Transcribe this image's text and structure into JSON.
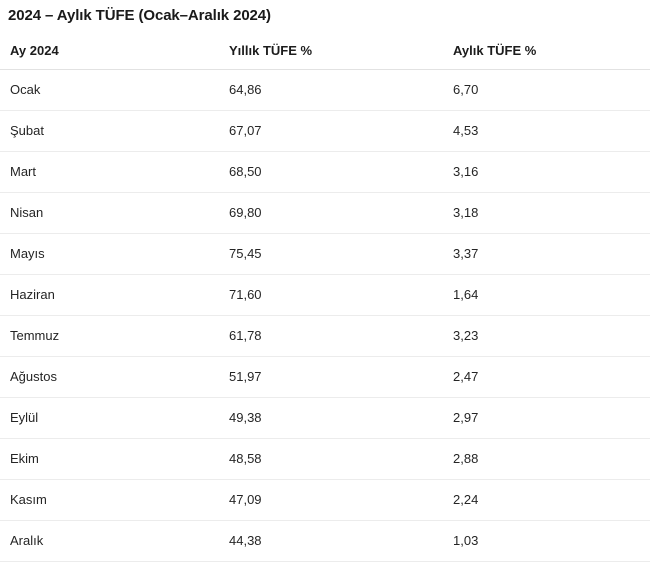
{
  "title": "2024 – Aylık TÜFE (Ocak–Aralık 2024)",
  "table": {
    "columns": [
      {
        "key": "month",
        "label": "Ay 2024"
      },
      {
        "key": "yearly",
        "label": "Yıllık TÜFE %"
      },
      {
        "key": "monthly",
        "label": "Aylık TÜFE %"
      }
    ],
    "rows": [
      {
        "month": "Ocak",
        "yearly": "64,86",
        "monthly": "6,70"
      },
      {
        "month": "Şubat",
        "yearly": "67,07",
        "monthly": "4,53"
      },
      {
        "month": "Mart",
        "yearly": "68,50",
        "monthly": "3,16"
      },
      {
        "month": "Nisan",
        "yearly": "69,80",
        "monthly": "3,18"
      },
      {
        "month": "Mayıs",
        "yearly": "75,45",
        "monthly": "3,37"
      },
      {
        "month": "Haziran",
        "yearly": "71,60",
        "monthly": "1,64"
      },
      {
        "month": "Temmuz",
        "yearly": "61,78",
        "monthly": "3,23"
      },
      {
        "month": "Ağustos",
        "yearly": "51,97",
        "monthly": "2,47"
      },
      {
        "month": "Eylül",
        "yearly": "49,38",
        "monthly": "2,97"
      },
      {
        "month": "Ekim",
        "yearly": "48,58",
        "monthly": "2,88"
      },
      {
        "month": "Kasım",
        "yearly": "47,09",
        "monthly": "2,24"
      },
      {
        "month": "Aralık",
        "yearly": "44,38",
        "monthly": "1,03"
      }
    ]
  }
}
